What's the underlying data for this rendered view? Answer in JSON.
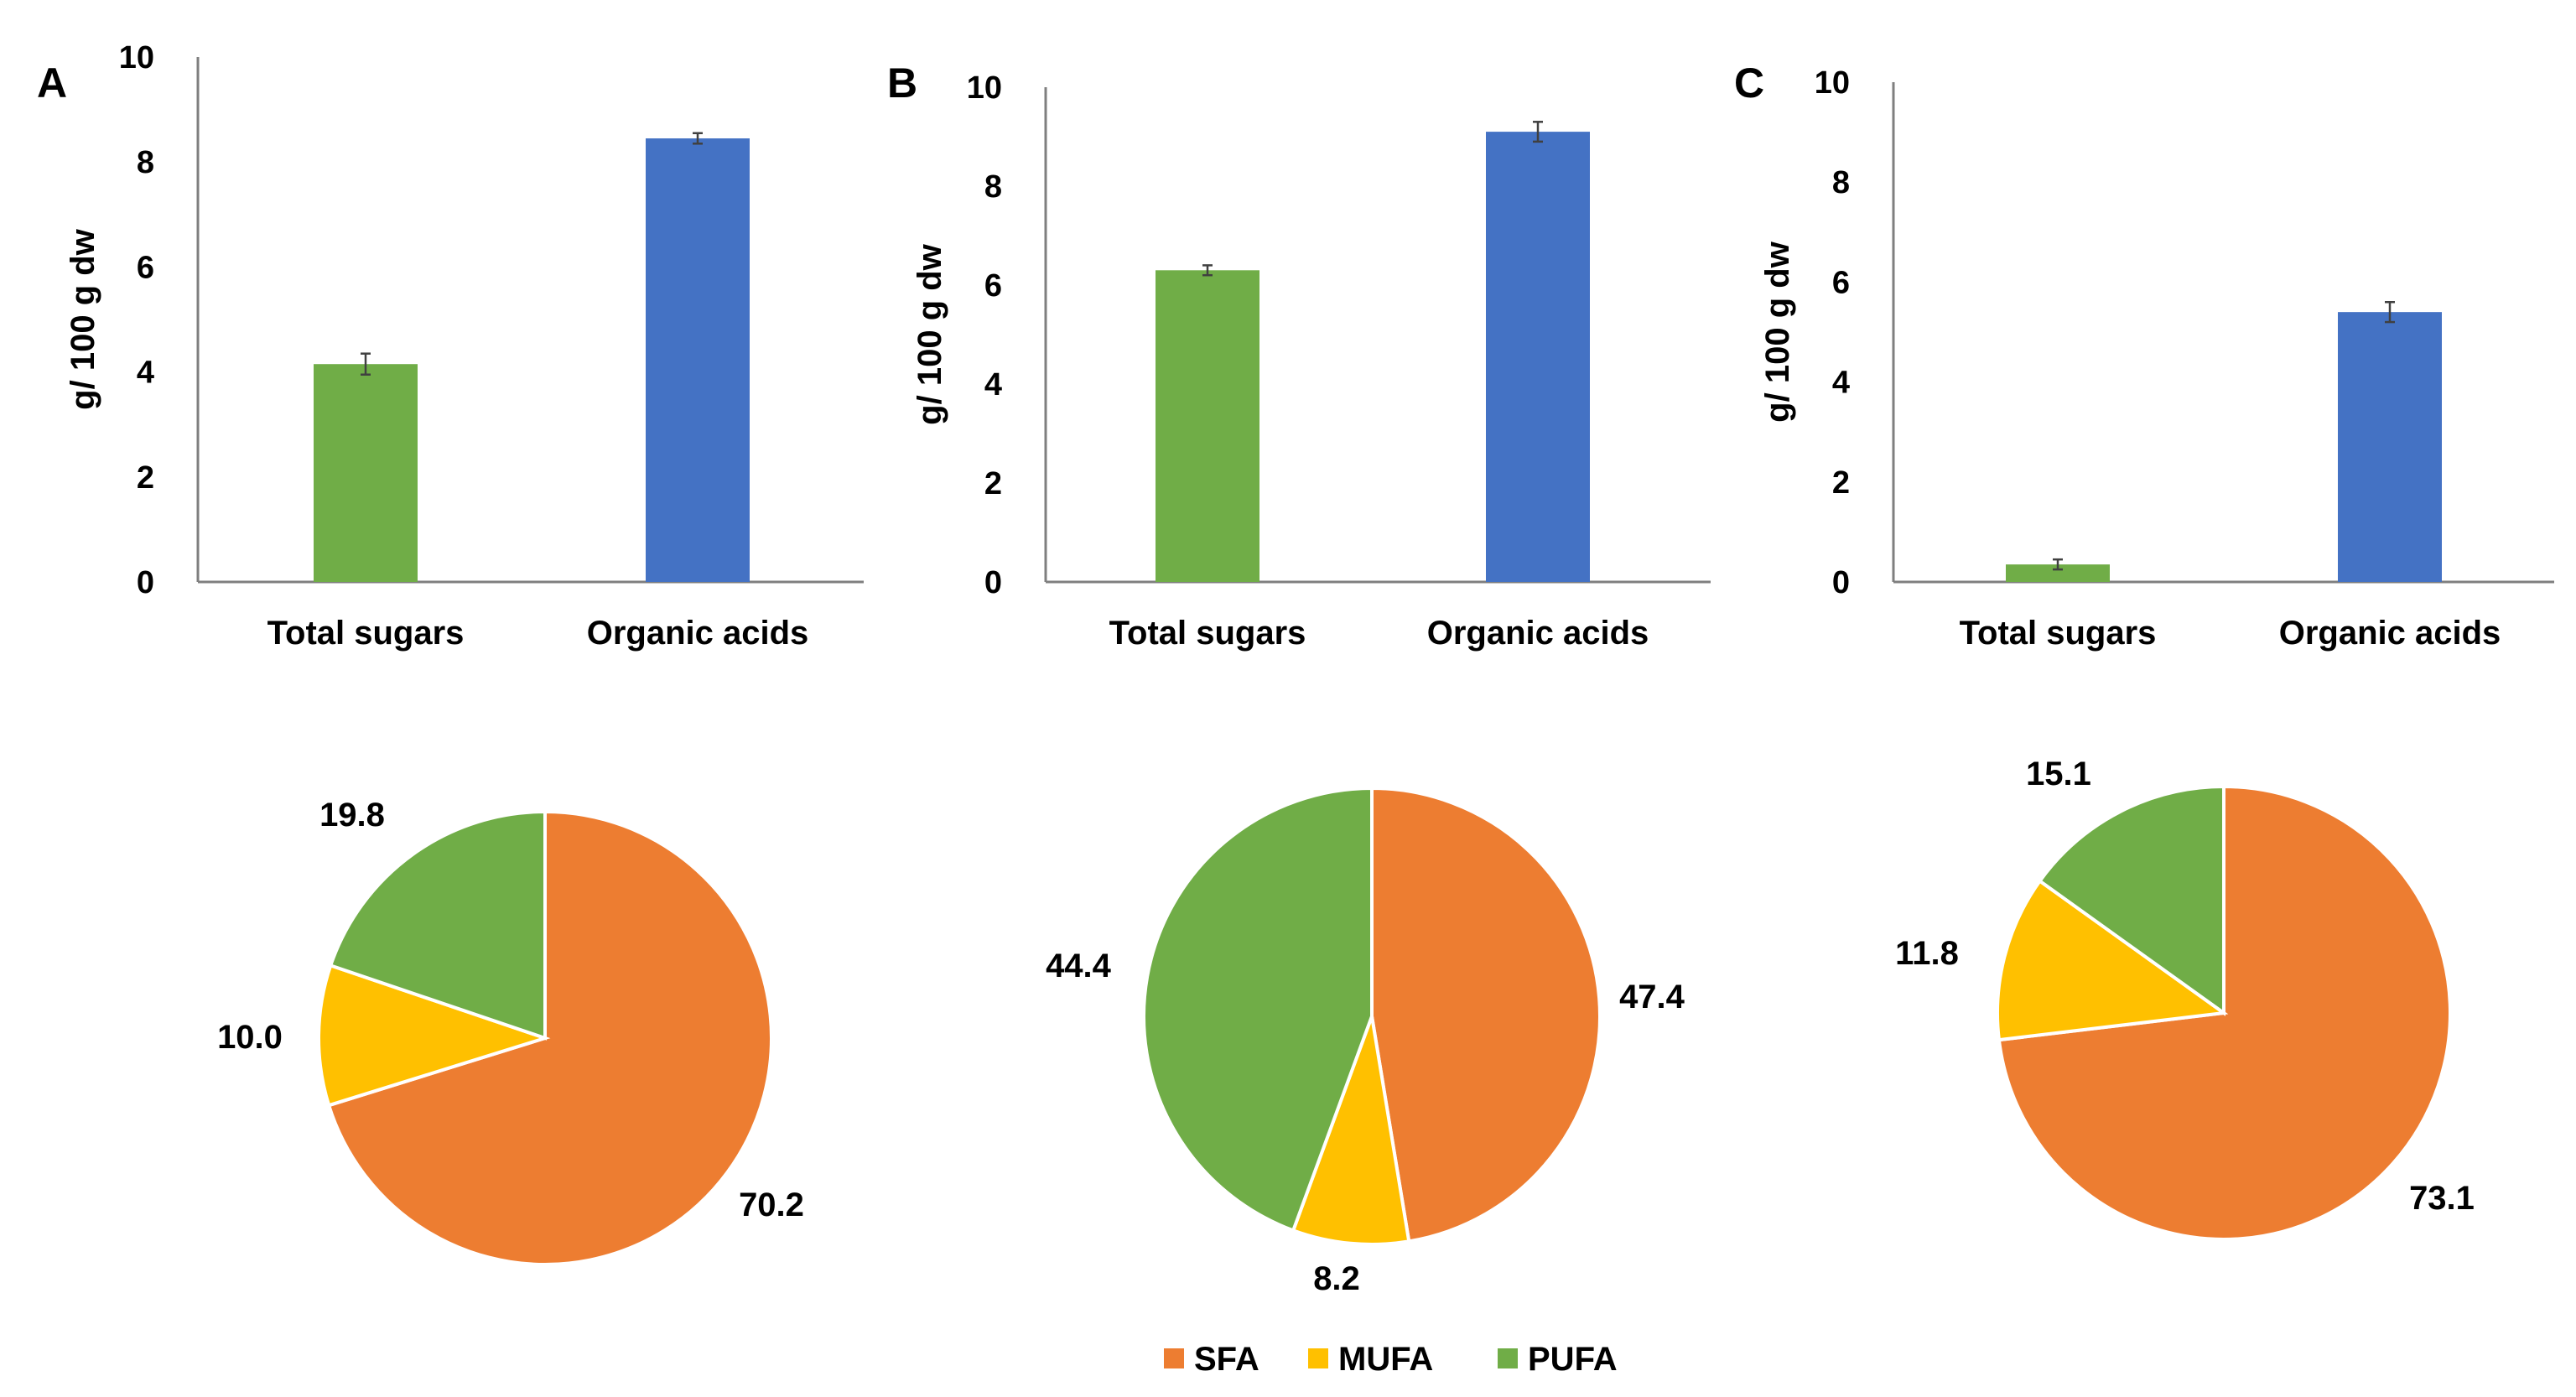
{
  "colors": {
    "sugars": "#70AD47",
    "acids": "#4472C4",
    "SFA": "#ED7D31",
    "MUFA": "#FFC000",
    "PUFA": "#70AD47",
    "axis": "#7f7f7f",
    "error": "#404040"
  },
  "chart_data": [
    {
      "type": "bar",
      "panel": "A",
      "ylabel": "g/ 100 g dw",
      "ylim": [
        0,
        10
      ],
      "yticks": [
        0,
        2,
        4,
        6,
        8,
        10
      ],
      "categories": [
        "Total sugars",
        "Organic acids"
      ],
      "values": [
        4.15,
        8.45
      ],
      "errors": [
        0.2,
        0.1
      ]
    },
    {
      "type": "bar",
      "panel": "B",
      "ylabel": "g/ 100 g dw",
      "ylim": [
        0,
        10
      ],
      "yticks": [
        0,
        2,
        4,
        6,
        8,
        10
      ],
      "categories": [
        "Total sugars",
        "Organic acids"
      ],
      "values": [
        6.3,
        9.1
      ],
      "errors": [
        0.1,
        0.2
      ]
    },
    {
      "type": "bar",
      "panel": "C",
      "ylabel": "g/ 100 g dw",
      "ylim": [
        0,
        10
      ],
      "yticks": [
        0,
        2,
        4,
        6,
        8,
        10
      ],
      "categories": [
        "Total sugars",
        "Organic acids"
      ],
      "values": [
        0.35,
        5.4
      ],
      "errors": [
        0.1,
        0.2
      ]
    },
    {
      "type": "pie",
      "panel": "A",
      "labels": [
        "SFA",
        "MUFA",
        "PUFA"
      ],
      "values": [
        70.2,
        10.0,
        19.8
      ],
      "value_labels": [
        "70.2",
        "10.0",
        "19.8"
      ]
    },
    {
      "type": "pie",
      "panel": "B",
      "labels": [
        "SFA",
        "MUFA",
        "PUFA"
      ],
      "values": [
        47.4,
        8.2,
        44.4
      ],
      "value_labels": [
        "47.4",
        "8.2",
        "44.4"
      ]
    },
    {
      "type": "pie",
      "panel": "C",
      "labels": [
        "SFA",
        "MUFA",
        "PUFA"
      ],
      "values": [
        73.1,
        11.8,
        15.1
      ],
      "value_labels": [
        "73.1",
        "11.8",
        "15.1"
      ]
    }
  ],
  "legend": {
    "position": "bottom-center",
    "items": [
      "SFA",
      "MUFA",
      "PUFA"
    ]
  }
}
